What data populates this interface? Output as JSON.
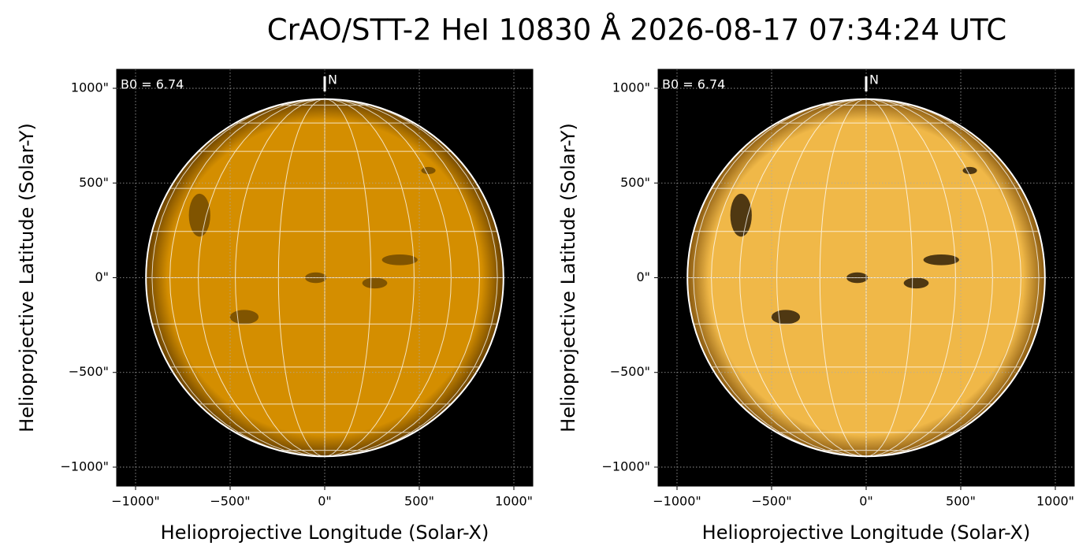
{
  "title": "CrAO/STT-2 HeI 10830 Å 2026-08-17 07:34:24 UTC",
  "chart_data": [
    {
      "type": "solar-disk",
      "xlabel": "Helioprojective Longitude (Solar-X)",
      "ylabel": "Helioprojective Latitude (Solar-Y)",
      "annotation": "B0 = 6.74",
      "north_label": "N",
      "xlim": [
        -1100,
        1100
      ],
      "ylim": [
        -1100,
        1100
      ],
      "xticks": [
        {
          "value": -1000,
          "label": "−1000\""
        },
        {
          "value": -500,
          "label": "−500\""
        },
        {
          "value": 0,
          "label": "0\""
        },
        {
          "value": 500,
          "label": "500\""
        },
        {
          "value": 1000,
          "label": "1000\""
        }
      ],
      "yticks": [
        {
          "value": -1000,
          "label": "−1000\""
        },
        {
          "value": -500,
          "label": "−500\""
        },
        {
          "value": 0,
          "label": "0\""
        },
        {
          "value": 500,
          "label": "500\""
        },
        {
          "value": 1000,
          "label": "1000\""
        }
      ],
      "solar_radius": 945,
      "grid": true,
      "color": "#d48e00",
      "limb_color": "#6a4200"
    },
    {
      "type": "solar-disk",
      "xlabel": "Helioprojective Longitude (Solar-X)",
      "ylabel": "Helioprojective Latitude (Solar-Y)",
      "annotation": "B0 = 6.74",
      "north_label": "N",
      "xlim": [
        -1100,
        1100
      ],
      "ylim": [
        -1100,
        1100
      ],
      "xticks": [
        {
          "value": -1000,
          "label": "−1000\""
        },
        {
          "value": -500,
          "label": "−500\""
        },
        {
          "value": 0,
          "label": "0\""
        },
        {
          "value": 500,
          "label": "500\""
        },
        {
          "value": 1000,
          "label": "1000\""
        }
      ],
      "yticks": [
        {
          "value": -1000,
          "label": "−1000\""
        },
        {
          "value": -500,
          "label": "−500\""
        },
        {
          "value": 0,
          "label": "0\""
        },
        {
          "value": 500,
          "label": "500\""
        },
        {
          "value": 1000,
          "label": "1000\""
        }
      ],
      "solar_radius": 945,
      "grid": true,
      "color": "#f0b848",
      "limb_color": "#8a5a10"
    }
  ]
}
